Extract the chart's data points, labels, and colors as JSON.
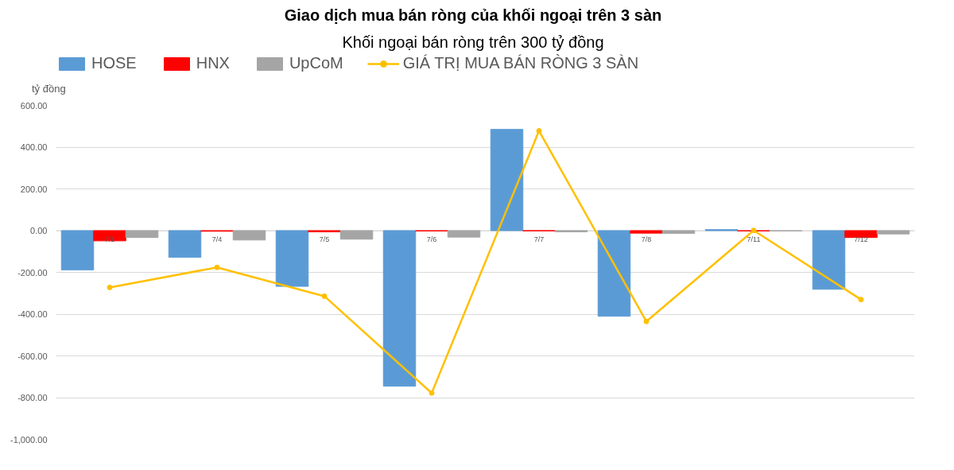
{
  "chart_data": {
    "type": "bar",
    "title": "Giao dịch mua bán ròng của khối ngoại trên 3 sàn",
    "subtitle": "Khối ngoại bán ròng trên 300 tỷ đồng",
    "ylabel": "tỷ đồng",
    "categories": [
      "7/1",
      "7/4",
      "7/5",
      "7/6",
      "7/7",
      "7/8",
      "7/11",
      "7/12"
    ],
    "series": [
      {
        "name": "HOSE",
        "color": "#5b9bd5",
        "values": [
          -188,
          -128,
          -267,
          -745,
          485,
          -410,
          5,
          -281
        ]
      },
      {
        "name": "HNX",
        "color": "#ff0000",
        "values": [
          -49,
          -3,
          -6,
          -2,
          -1,
          -12,
          -2,
          -33
        ]
      },
      {
        "name": "UpCoM",
        "color": "#a5a5a5",
        "values": [
          -33,
          -45,
          -41,
          -31,
          -6,
          -13,
          -2,
          -16
        ]
      },
      {
        "name": "GIÁ TRỊ MUA BÁN RÒNG 3 SÀN",
        "type": "line",
        "color": "#ffc000",
        "marker": "circle",
        "values": [
          -272,
          -176,
          -314,
          -778,
          478,
          -435,
          1,
          -330
        ]
      }
    ],
    "ylim": [
      -1000,
      600
    ],
    "yticks": [
      {
        "value": -1000,
        "label": "-1,000.00"
      },
      {
        "value": -800,
        "label": "-800.00"
      },
      {
        "value": -600,
        "label": "-600.00"
      },
      {
        "value": -400,
        "label": "-400.00"
      },
      {
        "value": -200,
        "label": "-200.00"
      },
      {
        "value": 0,
        "label": "0.00"
      },
      {
        "value": 200,
        "label": "200.00"
      },
      {
        "value": 400,
        "label": "400.00"
      },
      {
        "value": 600,
        "label": "600.00"
      }
    ],
    "grid": "y",
    "legend": "top left"
  }
}
